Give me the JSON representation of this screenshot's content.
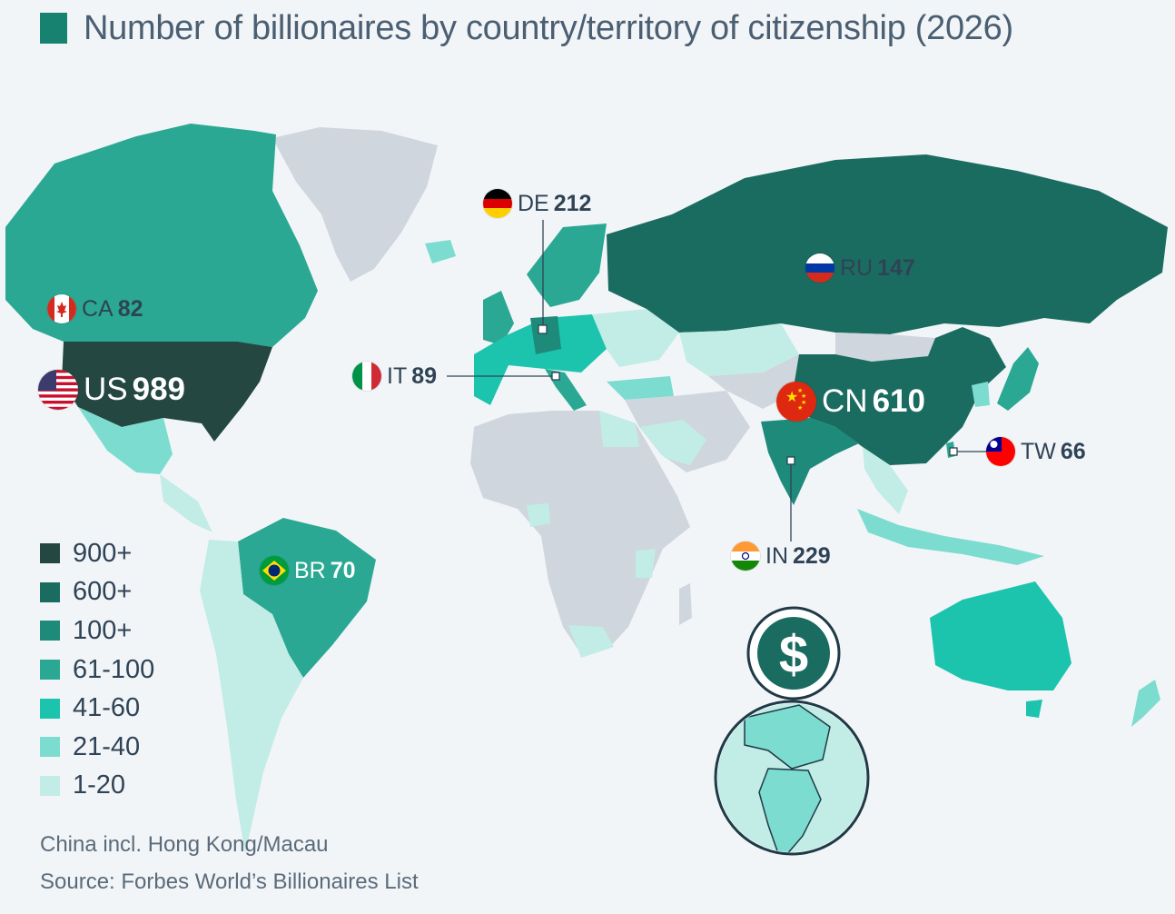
{
  "title": "Number of billionaires by country/territory of citizenship (2026)",
  "colors": {
    "background": "#f2f5f8",
    "no_data": "#cfd6dd",
    "accent": "#16826f"
  },
  "legend": [
    {
      "label": "900+",
      "color": "#244741"
    },
    {
      "label": "600+",
      "color": "#1b6c60"
    },
    {
      "label": "100+",
      "color": "#1d8a7a"
    },
    {
      "label": "61-100",
      "color": "#2aa893"
    },
    {
      "label": "41-60",
      "color": "#1cc4ad"
    },
    {
      "label": "21-40",
      "color": "#7ddcd0"
    },
    {
      "label": "1-20",
      "color": "#c2ece6"
    }
  ],
  "countries": [
    {
      "code": "US",
      "value": "989",
      "flag": "us-flag-icon"
    },
    {
      "code": "CN",
      "value": "610",
      "flag": "china-flag-icon"
    },
    {
      "code": "IN",
      "value": "229",
      "flag": "india-flag-icon"
    },
    {
      "code": "DE",
      "value": "212",
      "flag": "germany-flag-icon"
    },
    {
      "code": "RU",
      "value": "147",
      "flag": "russia-flag-icon"
    },
    {
      "code": "IT",
      "value": "89",
      "flag": "italy-flag-icon"
    },
    {
      "code": "CA",
      "value": "82",
      "flag": "canada-flag-icon"
    },
    {
      "code": "BR",
      "value": "70",
      "flag": "brazil-flag-icon"
    },
    {
      "code": "TW",
      "value": "66",
      "flag": "taiwan-flag-icon"
    }
  ],
  "decoration": {
    "icon": "dollar-globe-icon"
  },
  "footnote": "China incl. Hong Kong/Macau",
  "source": "Source: Forbes World’s Billionaires List"
}
